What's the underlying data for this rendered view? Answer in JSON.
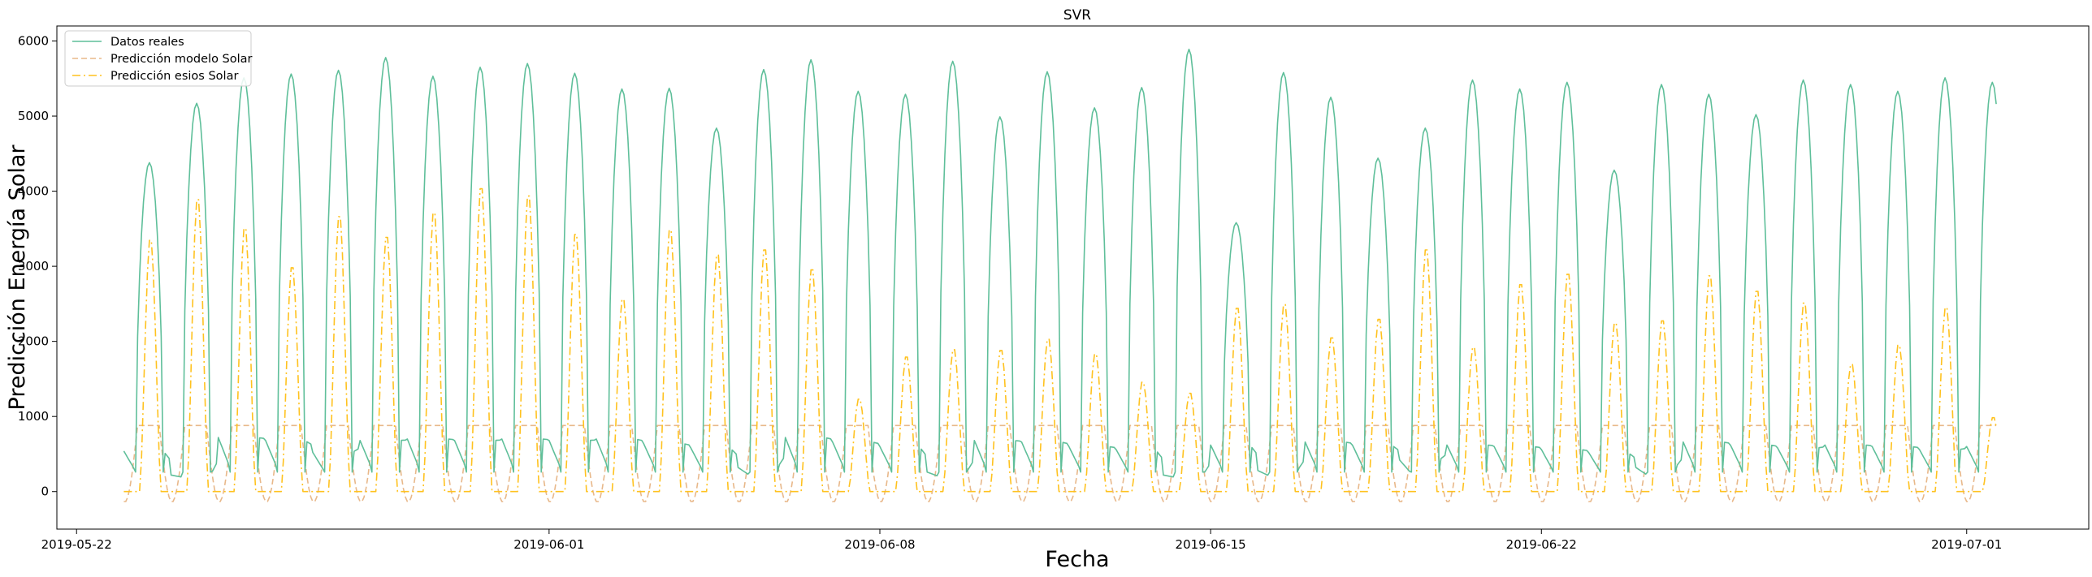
{
  "chart_data": {
    "type": "line",
    "title": "SVR",
    "xlabel": "Fecha",
    "ylabel": "Predicción Energía Solar",
    "x_start": "2019-05-23",
    "days": 40,
    "xlim": [
      "2019-05-21 14:00",
      "2019-07-03 14:00"
    ],
    "ylim": [
      -500,
      6200
    ],
    "x_ticks": [
      "2019-05-22",
      "2019-06-01",
      "2019-06-08",
      "2019-06-15",
      "2019-06-22",
      "2019-07-01"
    ],
    "y_ticks": [
      0,
      1000,
      2000,
      3000,
      4000,
      5000,
      6000
    ],
    "legend_position": "top-left",
    "grid": false,
    "series": [
      {
        "name": "Datos reales",
        "color": "#5fbf9a",
        "style": "solid",
        "daily_peaks": [
          4380,
          5170,
          5510,
          5560,
          5610,
          5780,
          5530,
          5650,
          5700,
          5570,
          5360,
          5370,
          4840,
          5620,
          5750,
          5330,
          5290,
          5730,
          4990,
          5590,
          5110,
          5380,
          5890,
          3580,
          5580,
          5250,
          4440,
          4840,
          5480,
          5360,
          5450,
          4280,
          5420,
          5290,
          5020,
          5480,
          5420,
          5330,
          5510,
          5450
        ],
        "daily_night": [
          540,
          220,
          720,
          680,
          520,
          680,
          700,
          680,
          700,
          680,
          700,
          640,
          580,
          320,
          720,
          660,
          600,
          260,
          680,
          660,
          600,
          560,
          220,
          620,
          280,
          660,
          620,
          420,
          620,
          600,
          560,
          520,
          320,
          660,
          620,
          580,
          620,
          600,
          560,
          600
        ]
      },
      {
        "name": "Predicción modelo Solar",
        "color": "#e8b88a",
        "style": "dashed",
        "plateau": 880,
        "trough": -140
      },
      {
        "name": "Predicción esios Solar",
        "color": "#ffc21f",
        "style": "dashdot",
        "daily_peaks": [
          3400,
          3950,
          3560,
          3030,
          3720,
          3440,
          3770,
          4100,
          4000,
          3480,
          2600,
          3540,
          3200,
          3270,
          3000,
          1250,
          1820,
          1920,
          1910,
          2060,
          1860,
          1480,
          1330,
          2480,
          2530,
          2080,
          2330,
          3270,
          1950,
          2800,
          2940,
          2280,
          2310,
          2920,
          2710,
          2550,
          1720,
          1980,
          2490,
          1000
        ]
      }
    ]
  }
}
